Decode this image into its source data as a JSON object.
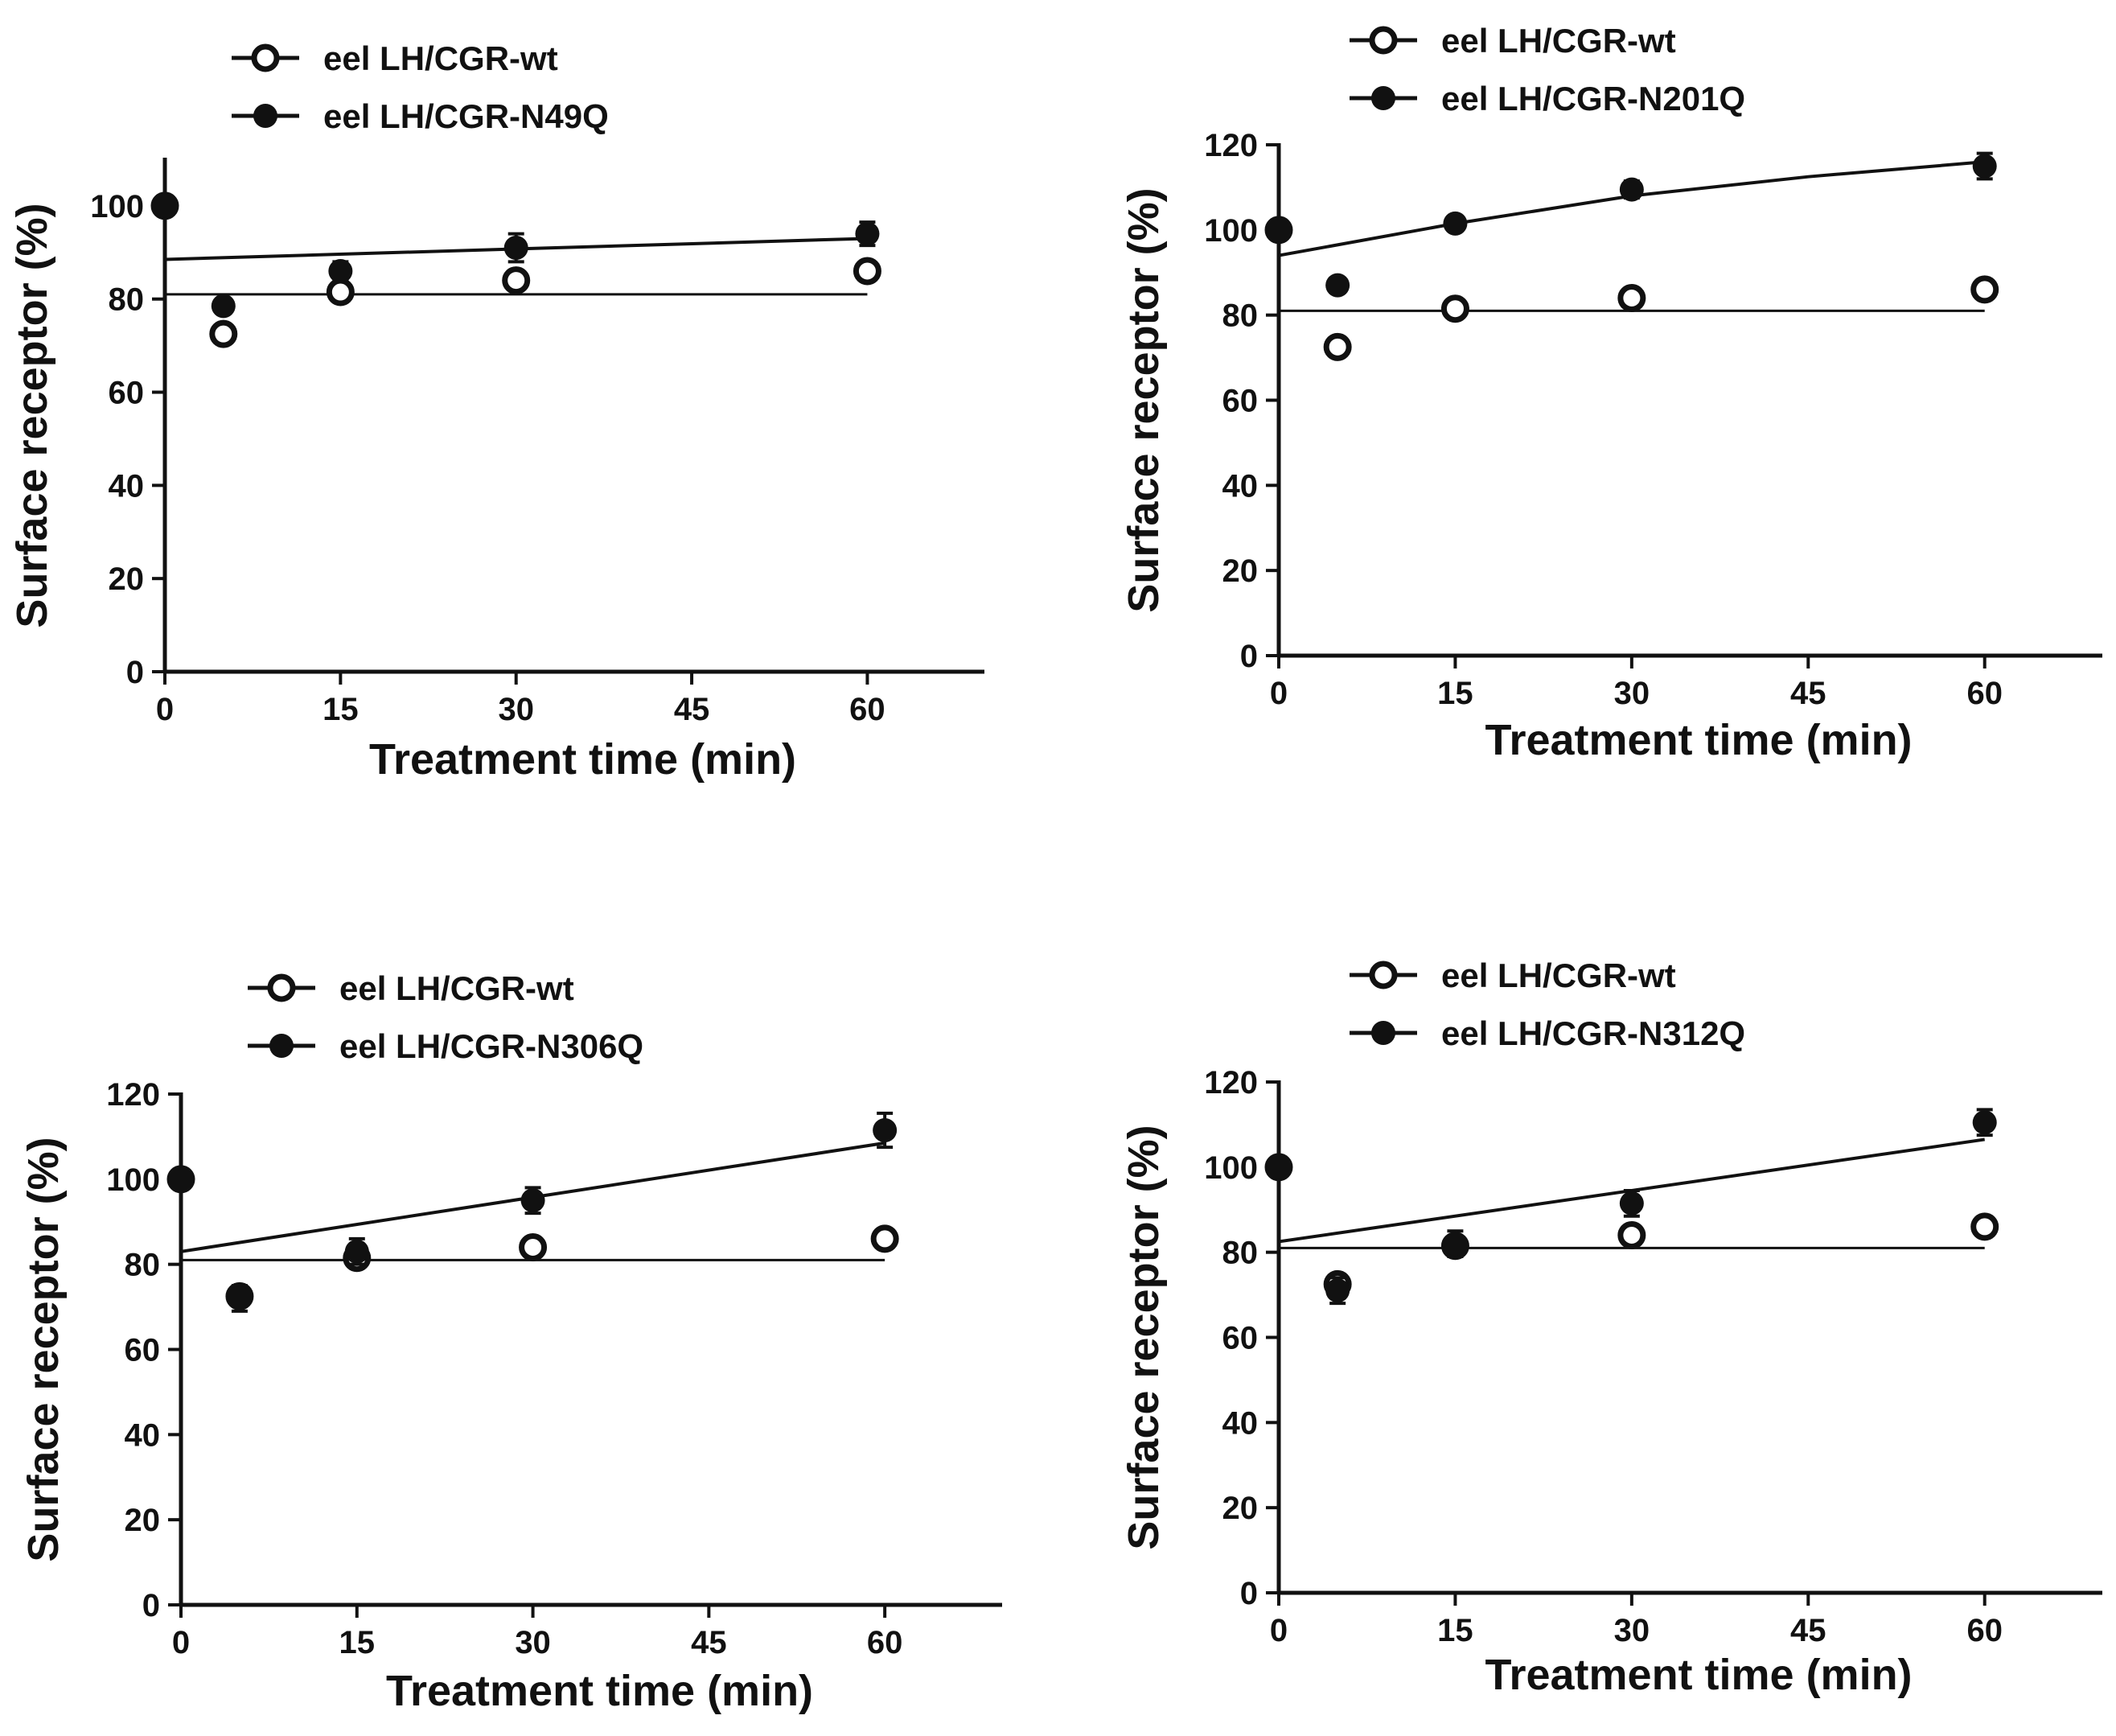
{
  "chart_data": [
    {
      "type": "scatter",
      "xlabel": "Treatment time (min)",
      "ylabel": "Surface receptor (%)",
      "xlim": [
        0,
        70
      ],
      "ylim": [
        0,
        110
      ],
      "xticks": [
        0,
        15,
        30,
        45,
        60
      ],
      "yticks": [
        0,
        20,
        40,
        60,
        80,
        100
      ],
      "legend_position": "top-left",
      "series": [
        {
          "name": "eel LH/CGR-wt",
          "marker": "open-circle",
          "x": [
            0,
            5,
            15,
            30,
            60
          ],
          "y": [
            100,
            72.5,
            81.5,
            84,
            86
          ],
          "err": [
            0,
            2,
            2,
            1.5,
            1.5
          ],
          "fit": {
            "kind": "linear",
            "x": [
              0,
              60
            ],
            "y": [
              81,
              81
            ],
            "width": 3
          }
        },
        {
          "name": "eel LH/CGR-N49Q",
          "marker": "filled-circle",
          "x": [
            0,
            5,
            15,
            30,
            60
          ],
          "y": [
            100,
            78.5,
            86,
            91,
            94
          ],
          "err": [
            0,
            1,
            2,
            3,
            2.5
          ],
          "fit": {
            "kind": "linear",
            "x": [
              0,
              60
            ],
            "y": [
              88.5,
              93
            ],
            "width": 4
          }
        }
      ]
    },
    {
      "type": "scatter",
      "xlabel": "Treatment time (min)",
      "ylabel": "Surface receptor (%)",
      "xlim": [
        0,
        70
      ],
      "ylim": [
        0,
        120
      ],
      "xticks": [
        0,
        15,
        30,
        45,
        60
      ],
      "yticks": [
        0,
        20,
        40,
        60,
        80,
        100,
        120
      ],
      "legend_position": "top-left",
      "series": [
        {
          "name": "eel LH/CGR-wt",
          "marker": "open-circle",
          "x": [
            0,
            5,
            15,
            30,
            60
          ],
          "y": [
            100,
            72.5,
            81.5,
            84,
            86
          ],
          "err": [
            0,
            2,
            2,
            1.5,
            1.5
          ],
          "fit": {
            "kind": "linear",
            "x": [
              0,
              60
            ],
            "y": [
              81,
              81
            ],
            "width": 3
          }
        },
        {
          "name": "eel LH/CGR-N201Q",
          "marker": "filled-circle",
          "x": [
            0,
            5,
            15,
            30,
            60
          ],
          "y": [
            100,
            87,
            101.5,
            109.5,
            115
          ],
          "err": [
            0,
            1,
            1,
            2,
            3
          ],
          "fit": {
            "kind": "curve",
            "x": [
              0,
              15,
              30,
              45,
              60
            ],
            "y": [
              94,
              101.5,
              108,
              112.5,
              116
            ],
            "width": 4
          }
        }
      ]
    },
    {
      "type": "scatter",
      "xlabel": "Treatment time (min)",
      "ylabel": "Surface receptor (%)",
      "xlim": [
        0,
        70
      ],
      "ylim": [
        0,
        120
      ],
      "xticks": [
        0,
        15,
        30,
        45,
        60
      ],
      "yticks": [
        0,
        20,
        40,
        60,
        80,
        100,
        120
      ],
      "legend_position": "top-left",
      "series": [
        {
          "name": "eel LH/CGR-wt",
          "marker": "open-circle",
          "x": [
            0,
            5,
            15,
            30,
            60
          ],
          "y": [
            100,
            72.5,
            81.5,
            84,
            86
          ],
          "err": [
            0,
            2,
            2,
            1.5,
            1.5
          ],
          "fit": {
            "kind": "linear",
            "x": [
              0,
              60
            ],
            "y": [
              81,
              81
            ],
            "width": 3
          }
        },
        {
          "name": "eel LH/CGR-N306Q",
          "marker": "filled-circle",
          "x": [
            0,
            5,
            15,
            30,
            60
          ],
          "y": [
            100,
            72,
            83,
            95,
            111.5
          ],
          "err": [
            0,
            3,
            3,
            3,
            4
          ],
          "fit": {
            "kind": "linear",
            "x": [
              0,
              60
            ],
            "y": [
              83,
              108.5
            ],
            "width": 4
          }
        }
      ]
    },
    {
      "type": "scatter",
      "xlabel": "Treatment time (min)",
      "ylabel": "Surface receptor (%)",
      "xlim": [
        0,
        70
      ],
      "ylim": [
        0,
        120
      ],
      "xticks": [
        0,
        15,
        30,
        45,
        60
      ],
      "yticks": [
        0,
        20,
        40,
        60,
        80,
        100,
        120
      ],
      "legend_position": "top-left",
      "series": [
        {
          "name": "eel LH/CGR-wt",
          "marker": "open-circle",
          "x": [
            0,
            5,
            15,
            30,
            60
          ],
          "y": [
            100,
            72.5,
            81.5,
            84,
            86
          ],
          "err": [
            0,
            2,
            2,
            1.5,
            1.5
          ],
          "fit": {
            "kind": "linear",
            "x": [
              0,
              60
            ],
            "y": [
              81,
              81
            ],
            "width": 3
          }
        },
        {
          "name": "eel LH/CGR-N312Q",
          "marker": "filled-circle",
          "x": [
            0,
            5,
            15,
            30,
            60
          ],
          "y": [
            100,
            71,
            82,
            91.5,
            110.5
          ],
          "err": [
            0,
            3,
            3,
            3,
            3
          ],
          "fit": {
            "kind": "linear",
            "x": [
              0,
              60
            ],
            "y": [
              82.5,
              106.5
            ],
            "width": 4
          }
        }
      ]
    }
  ],
  "colors": {
    "ink": "#111111",
    "background": "#ffffff",
    "open_marker_fill": "#ffffff"
  }
}
